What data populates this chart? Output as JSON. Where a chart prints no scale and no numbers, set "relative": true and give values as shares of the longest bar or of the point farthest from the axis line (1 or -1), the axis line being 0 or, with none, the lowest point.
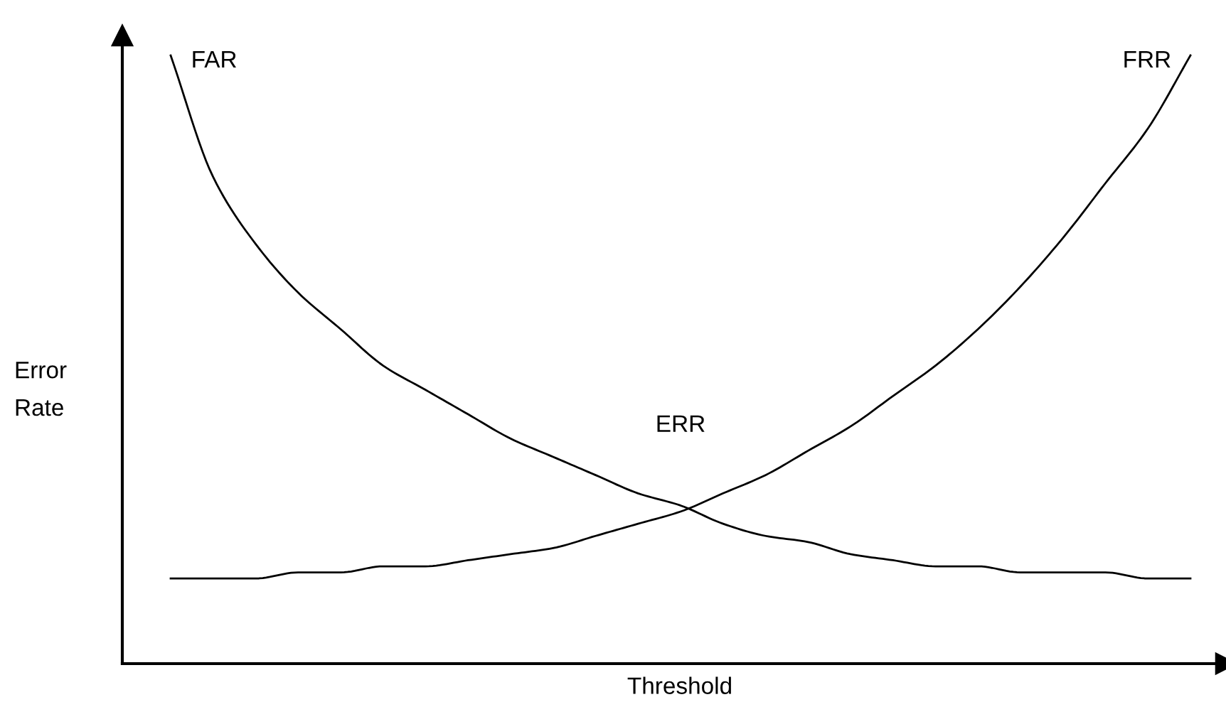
{
  "chart_data": {
    "type": "line",
    "relative": true,
    "xlabel": "Threshold",
    "ylabel": "Error\nRate",
    "categories": [
      null,
      null,
      null,
      null,
      null,
      null,
      null,
      null,
      null,
      null,
      null,
      null,
      null,
      null,
      null,
      null,
      null,
      null,
      null,
      null,
      null,
      null,
      null,
      null,
      null
    ],
    "series": [
      {
        "name": "FAR",
        "color": "#000000",
        "values": [
          1.0,
          0.8,
          0.69,
          0.61,
          0.55,
          0.49,
          0.45,
          0.41,
          0.37,
          0.34,
          0.31,
          0.28,
          0.26,
          0.23,
          0.21,
          0.2,
          0.18,
          0.17,
          0.16,
          0.16,
          0.15,
          0.15,
          0.15,
          0.14,
          0.14
        ]
      },
      {
        "name": "FRR",
        "color": "#000000",
        "values": [
          0.14,
          0.14,
          0.14,
          0.15,
          0.15,
          0.16,
          0.16,
          0.17,
          0.18,
          0.19,
          0.21,
          0.23,
          0.25,
          0.28,
          0.31,
          0.35,
          0.39,
          0.44,
          0.49,
          0.55,
          0.62,
          0.7,
          0.79,
          0.88,
          1.0
        ]
      }
    ],
    "annotations": [
      "ERR"
    ],
    "legend": false,
    "marker": "none",
    "line_style": "solid"
  }
}
